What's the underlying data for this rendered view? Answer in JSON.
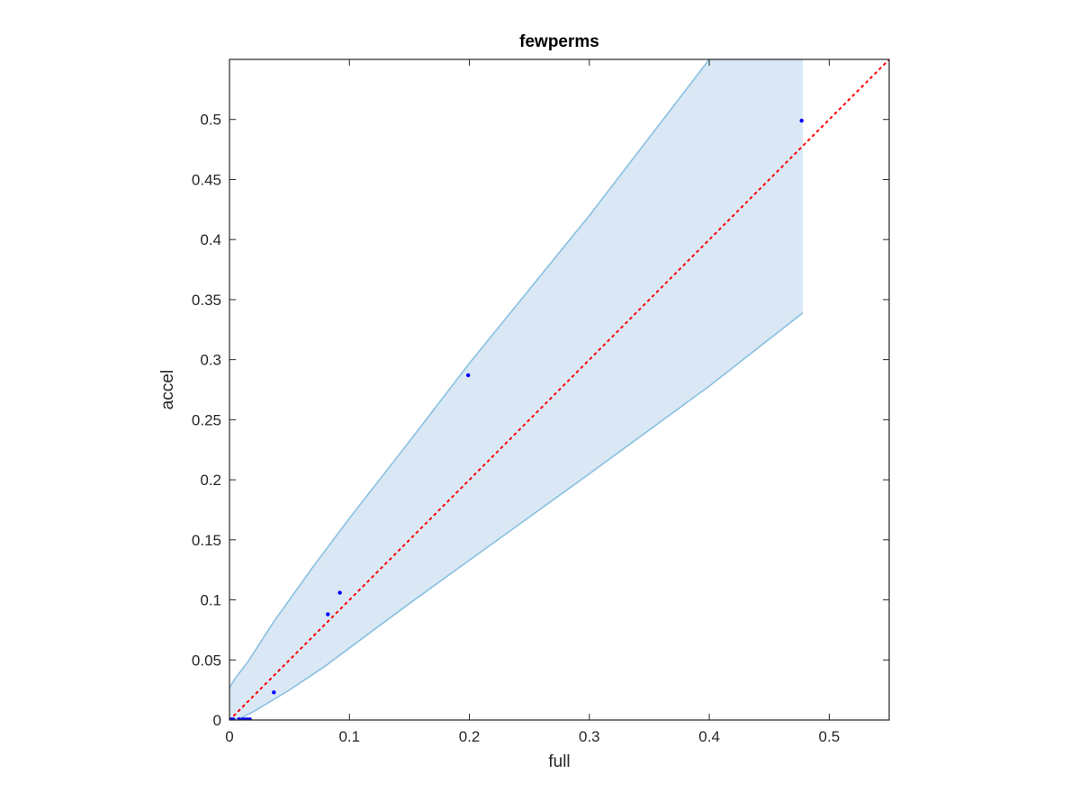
{
  "chart_data": {
    "type": "scatter",
    "title": "fewperms",
    "xlabel": "full",
    "ylabel": "accel",
    "xlim": [
      0,
      0.55
    ],
    "ylim": [
      0,
      0.55
    ],
    "grid": false,
    "x_ticks": [
      0,
      0.1,
      0.2,
      0.3,
      0.4,
      0.5
    ],
    "x_tick_labels": [
      "0",
      "0.1",
      "0.2",
      "0.3",
      "0.4",
      "0.5"
    ],
    "y_ticks": [
      0,
      0.05,
      0.1,
      0.15,
      0.2,
      0.25,
      0.3,
      0.35,
      0.4,
      0.45,
      0.5
    ],
    "y_tick_labels": [
      "0",
      "0.05",
      "0.1",
      "0.15",
      "0.2",
      "0.25",
      "0.3",
      "0.35",
      "0.4",
      "0.45",
      "0.5"
    ],
    "band": {
      "fill_color": "#d9e8f4",
      "edge_color": "#89c0e2",
      "upper": [
        [
          0,
          0.027
        ],
        [
          0.005,
          0.035
        ],
        [
          0.015,
          0.048
        ],
        [
          0.037,
          0.082
        ],
        [
          0.07,
          0.128
        ],
        [
          0.1,
          0.168
        ],
        [
          0.15,
          0.232
        ],
        [
          0.2,
          0.297
        ],
        [
          0.3,
          0.42
        ],
        [
          0.4,
          0.55
        ],
        [
          0.478,
          0.55
        ]
      ],
      "lower": [
        [
          0,
          0.0
        ],
        [
          0.01,
          0.002
        ],
        [
          0.02,
          0.007
        ],
        [
          0.05,
          0.025
        ],
        [
          0.08,
          0.045
        ],
        [
          0.1,
          0.06
        ],
        [
          0.15,
          0.097
        ],
        [
          0.2,
          0.133
        ],
        [
          0.3,
          0.205
        ],
        [
          0.4,
          0.278
        ],
        [
          0.478,
          0.339
        ]
      ]
    },
    "reference_line": {
      "x": [
        0,
        0.55
      ],
      "y": [
        0,
        0.55
      ],
      "color": "#ff0000",
      "style": "dotted"
    },
    "series": [
      {
        "color": "#0000ff",
        "points": [
          [
            0.001,
            0.0005
          ],
          [
            0.003,
            0.0005
          ],
          [
            0.008,
            0.0005
          ],
          [
            0.011,
            0.0005
          ],
          [
            0.013,
            0.0005
          ],
          [
            0.015,
            0.0005
          ],
          [
            0.017,
            0.0005
          ],
          [
            0.037,
            0.023
          ],
          [
            0.082,
            0.088
          ],
          [
            0.092,
            0.106
          ],
          [
            0.199,
            0.287
          ],
          [
            0.477,
            0.499
          ]
        ]
      }
    ]
  }
}
